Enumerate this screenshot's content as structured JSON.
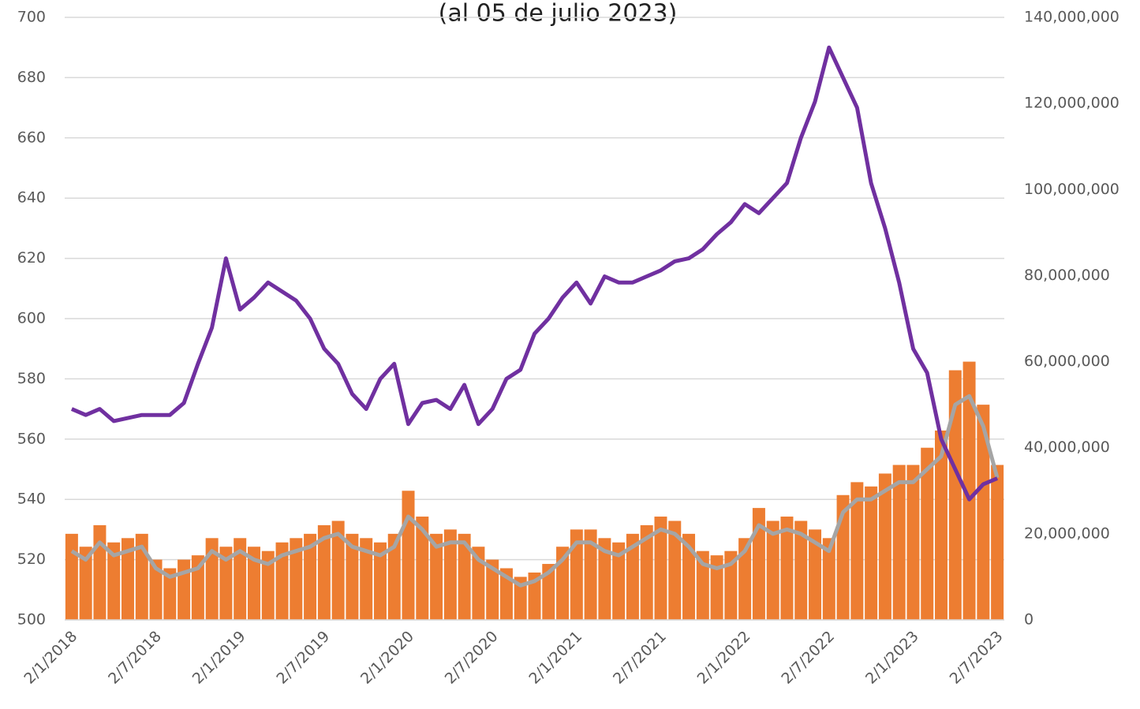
{
  "chart_data": {
    "type": "combo",
    "title": "(al 05 de julio 2023)",
    "categories": [
      "2/1/2018",
      null,
      null,
      null,
      null,
      null,
      "2/7/2018",
      null,
      null,
      null,
      null,
      null,
      "2/1/2019",
      null,
      null,
      null,
      null,
      null,
      "2/7/2019",
      null,
      null,
      null,
      null,
      null,
      "2/1/2020",
      null,
      null,
      null,
      null,
      null,
      "2/7/2020",
      null,
      null,
      null,
      null,
      null,
      "2/1/2021",
      null,
      null,
      null,
      null,
      null,
      "2/7/2021",
      null,
      null,
      null,
      null,
      null,
      "2/1/2022",
      null,
      null,
      null,
      null,
      null,
      "2/7/2022",
      null,
      null,
      null,
      null,
      null,
      "2/1/2023",
      null,
      null,
      null,
      null,
      null,
      "2/7/2023"
    ],
    "series": [
      {
        "type": "bar",
        "axis": "y2",
        "color": "#ed7d31",
        "values": [
          20000000,
          17000000,
          22000000,
          18000000,
          19000000,
          20000000,
          14000000,
          12000000,
          14000000,
          15000000,
          19000000,
          17000000,
          19000000,
          17000000,
          16000000,
          18000000,
          19000000,
          20000000,
          22000000,
          23000000,
          20000000,
          19000000,
          18000000,
          20000000,
          30000000,
          24000000,
          20000000,
          21000000,
          20000000,
          17000000,
          14000000,
          12000000,
          10000000,
          11000000,
          13000000,
          17000000,
          21000000,
          21000000,
          19000000,
          18000000,
          20000000,
          22000000,
          24000000,
          23000000,
          20000000,
          16000000,
          15000000,
          16000000,
          19000000,
          26000000,
          23000000,
          24000000,
          23000000,
          21000000,
          19000000,
          29000000,
          32000000,
          31000000,
          34000000,
          36000000,
          36000000,
          40000000,
          44000000,
          58000000,
          60000000,
          50000000,
          36000000
        ]
      },
      {
        "type": "line",
        "axis": "y2",
        "color": "#a5a5a5",
        "values": [
          16000000,
          14000000,
          18000000,
          15000000,
          16000000,
          17000000,
          12000000,
          10000000,
          11000000,
          12000000,
          16000000,
          14000000,
          16000000,
          14000000,
          13000000,
          15000000,
          16000000,
          17000000,
          19000000,
          20000000,
          17000000,
          16000000,
          15000000,
          17000000,
          24000000,
          21000000,
          17000000,
          18000000,
          18000000,
          14000000,
          12000000,
          10000000,
          8000000,
          9000000,
          11000000,
          14000000,
          18000000,
          18000000,
          16000000,
          15000000,
          17000000,
          19000000,
          21000000,
          20000000,
          17000000,
          13000000,
          12000000,
          13000000,
          16000000,
          22000000,
          20000000,
          21000000,
          20000000,
          18000000,
          16000000,
          25000000,
          28000000,
          28000000,
          30000000,
          32000000,
          32000000,
          35000000,
          38000000,
          50000000,
          52000000,
          45000000,
          33000000
        ]
      },
      {
        "type": "line",
        "axis": "y",
        "color": "#7030a0",
        "values": [
          570,
          568,
          570,
          566,
          567,
          568,
          568,
          568,
          572,
          585,
          597,
          620,
          603,
          607,
          612,
          609,
          606,
          600,
          590,
          585,
          575,
          570,
          580,
          585,
          565,
          572,
          573,
          570,
          578,
          565,
          570,
          580,
          583,
          595,
          600,
          607,
          612,
          605,
          614,
          612,
          612,
          614,
          616,
          619,
          620,
          623,
          628,
          632,
          638,
          635,
          640,
          645,
          660,
          672,
          690,
          680,
          670,
          645,
          630,
          612,
          590,
          582,
          560,
          550,
          540,
          545,
          547
        ]
      }
    ],
    "ylim": [
      500,
      700
    ],
    "yticks": [
      500,
      520,
      540,
      560,
      580,
      600,
      620,
      640,
      660,
      680,
      700
    ],
    "y2lim": [
      0,
      140000000
    ],
    "y2ticks": [
      0,
      {
        "value": 20000000,
        "label": "20,000,000"
      },
      {
        "value": 40000000,
        "label": "40,000,000"
      },
      {
        "value": 60000000,
        "label": "60,000,000"
      },
      {
        "value": 80000000,
        "label": "80,000,000"
      },
      {
        "value": 100000000,
        "label": "100,000,000"
      },
      {
        "value": 120000000,
        "label": "120,000,000"
      },
      {
        "value": 140000000,
        "label": "140,000,000"
      }
    ],
    "grid": true
  }
}
